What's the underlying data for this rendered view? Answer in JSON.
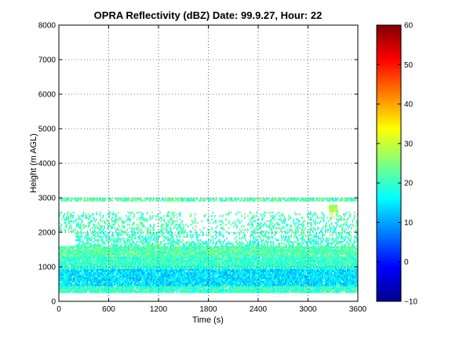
{
  "chart_data": {
    "type": "heatmap",
    "title": "OPRA Reflectivity (dBZ)  Date: 99.9.27, Hour: 22",
    "xlabel": "Time (s)",
    "ylabel": "Height (m AGL)",
    "xlim": [
      0,
      3600
    ],
    "ylim": [
      0,
      8000
    ],
    "x_ticks": [
      0,
      600,
      1200,
      1800,
      2400,
      3000,
      3600
    ],
    "y_ticks": [
      0,
      1000,
      2000,
      3000,
      4000,
      5000,
      6000,
      7000,
      8000
    ],
    "grid": true,
    "colorbar": {
      "min": -10,
      "max": 60,
      "ticks": [
        -10,
        0,
        10,
        20,
        30,
        40,
        50,
        60
      ],
      "colormap": "jet"
    },
    "field": {
      "time_range_s": [
        0,
        3600
      ],
      "height_range_m": [
        200,
        3100
      ],
      "description_note": "radar echo layers",
      "layers": [
        {
          "height_range": [
            250,
            450
          ],
          "dbz": 20,
          "time_range": [
            0,
            3600
          ]
        },
        {
          "height_range": [
            450,
            950
          ],
          "dbz": 14,
          "time_range": [
            0,
            3600
          ]
        },
        {
          "height_range": [
            950,
            1300
          ],
          "dbz": 20,
          "time_range": [
            0,
            3600
          ]
        },
        {
          "height_range": [
            1300,
            1600
          ],
          "dbz": 22,
          "time_range": [
            0,
            3600
          ]
        },
        {
          "height_range": [
            1600,
            2000
          ],
          "dbz": 20,
          "time_range": [
            200,
            3600
          ]
        },
        {
          "height_range": [
            2000,
            2600
          ],
          "dbz": 21,
          "time_range": [
            0,
            3600
          ]
        },
        {
          "height_range": [
            2900,
            3000
          ],
          "dbz": 22,
          "time_range": [
            0,
            3600
          ]
        },
        {
          "height_range": [
            2400,
            2800
          ],
          "dbz": 28,
          "time_range": [
            3250,
            3350
          ]
        }
      ]
    }
  }
}
